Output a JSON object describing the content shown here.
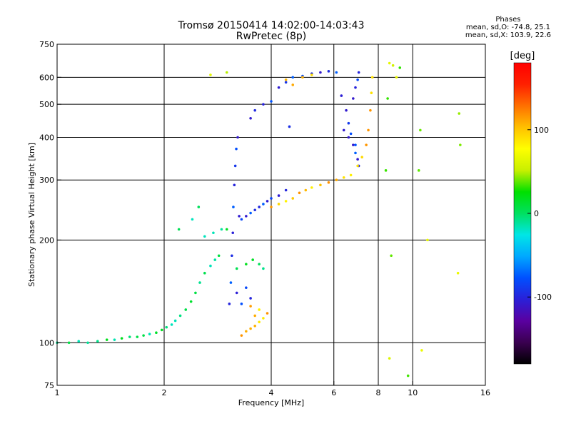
{
  "header": {
    "title_line1": "Tromsø 20150414 14:02:00-14:03:43",
    "title_line2": "RwPretec (8p)"
  },
  "phases_box": {
    "heading": "Phases",
    "line_o": "mean, sd,O: -74.8, 25.1",
    "line_x": "mean, sd,X: 103.9, 22.6"
  },
  "chart_data": {
    "type": "scatter",
    "title": "Tromsø 20150414 14:02:00-14:03:43",
    "subtitle": "RwPretec (8p)",
    "xlabel": "Frequency [MHz]",
    "ylabel": "Stationary phase Virtual Height [km]",
    "x_scale": "log",
    "y_scale": "log",
    "xlim": [
      1,
      16
    ],
    "ylim": [
      75,
      750
    ],
    "x_ticks": [
      1,
      2,
      4,
      6,
      8,
      10,
      16
    ],
    "y_ticks": [
      75,
      100,
      200,
      300,
      400,
      500,
      600,
      750
    ],
    "vertical_gridlines": [
      2,
      4,
      6,
      8,
      10
    ],
    "horizontal_gridlines": [
      100,
      200,
      300,
      400,
      500,
      600
    ],
    "grid": true,
    "colorbar": {
      "label": "[deg]",
      "range": [
        -180,
        180
      ],
      "ticks": [
        100,
        0,
        -100
      ],
      "colors": [
        "#000000",
        "#3a0050",
        "#5a00a0",
        "#2a20d8",
        "#0050ff",
        "#00a8ff",
        "#00e6e6",
        "#00e060",
        "#00e000",
        "#c8f000",
        "#ffff00",
        "#ffc000",
        "#ff7000",
        "#ff2000",
        "#ff0000"
      ]
    },
    "series": [
      {
        "points": [
          [
            1.0,
            100
          ],
          [
            1.08,
            100
          ],
          [
            1.15,
            101
          ],
          [
            1.22,
            100
          ],
          [
            1.3,
            101
          ],
          [
            1.38,
            102
          ],
          [
            1.45,
            102
          ],
          [
            1.52,
            103
          ],
          [
            1.6,
            104
          ],
          [
            1.68,
            104
          ],
          [
            1.75,
            105
          ],
          [
            1.82,
            106
          ],
          [
            1.9,
            107
          ],
          [
            1.97,
            109
          ],
          [
            2.03,
            111
          ],
          [
            2.1,
            113
          ],
          [
            2.15,
            116
          ],
          [
            2.22,
            120
          ],
          [
            2.3,
            125
          ],
          [
            2.38,
            132
          ],
          [
            2.45,
            140
          ],
          [
            2.52,
            150
          ],
          [
            2.6,
            160
          ],
          [
            2.7,
            168
          ],
          [
            2.78,
            175
          ],
          [
            2.85,
            180
          ],
          [
            2.2,
            215
          ],
          [
            2.4,
            230
          ],
          [
            2.5,
            250
          ],
          [
            2.6,
            205
          ],
          [
            2.75,
            210
          ],
          [
            2.9,
            215
          ],
          [
            3.0,
            215
          ],
          [
            3.2,
            165
          ],
          [
            3.4,
            170
          ],
          [
            3.55,
            175
          ],
          [
            3.7,
            170
          ],
          [
            3.8,
            165
          ]
        ],
        "phase": 0
      },
      {
        "points": [
          [
            3.05,
            130
          ],
          [
            3.08,
            150
          ],
          [
            3.1,
            180
          ],
          [
            3.12,
            210
          ],
          [
            3.13,
            250
          ],
          [
            3.15,
            290
          ],
          [
            3.17,
            330
          ],
          [
            3.19,
            370
          ],
          [
            3.22,
            400
          ],
          [
            3.25,
            235
          ],
          [
            3.3,
            230
          ],
          [
            3.4,
            235
          ],
          [
            3.5,
            240
          ],
          [
            3.6,
            245
          ],
          [
            3.7,
            250
          ],
          [
            3.8,
            255
          ],
          [
            3.9,
            260
          ],
          [
            4.0,
            265
          ],
          [
            4.2,
            270
          ],
          [
            4.4,
            280
          ],
          [
            4.5,
            430
          ],
          [
            4.0,
            510
          ],
          [
            3.8,
            500
          ],
          [
            3.6,
            480
          ],
          [
            3.5,
            455
          ],
          [
            4.2,
            560
          ],
          [
            4.4,
            580
          ],
          [
            4.6,
            600
          ],
          [
            4.9,
            605
          ],
          [
            5.2,
            615
          ],
          [
            5.5,
            620
          ],
          [
            5.8,
            625
          ],
          [
            6.1,
            620
          ],
          [
            6.3,
            530
          ],
          [
            6.5,
            480
          ],
          [
            6.6,
            440
          ],
          [
            6.7,
            410
          ],
          [
            6.8,
            380
          ],
          [
            6.9,
            360
          ],
          [
            7.0,
            345
          ],
          [
            7.05,
            330
          ],
          [
            6.8,
            520
          ],
          [
            6.9,
            560
          ],
          [
            7.0,
            590
          ],
          [
            7.05,
            620
          ],
          [
            6.9,
            380
          ],
          [
            6.6,
            400
          ],
          [
            6.4,
            420
          ],
          [
            3.2,
            140
          ],
          [
            3.3,
            130
          ],
          [
            3.4,
            145
          ],
          [
            3.5,
            135
          ]
        ],
        "phase": -90
      },
      {
        "points": [
          [
            3.3,
            105
          ],
          [
            3.4,
            108
          ],
          [
            3.5,
            110
          ],
          [
            3.6,
            112
          ],
          [
            3.7,
            115
          ],
          [
            3.8,
            118
          ],
          [
            3.9,
            122
          ],
          [
            3.6,
            120
          ],
          [
            3.7,
            125
          ],
          [
            3.5,
            128
          ],
          [
            4.0,
            250
          ],
          [
            4.2,
            255
          ],
          [
            4.4,
            260
          ],
          [
            4.6,
            265
          ],
          [
            4.8,
            275
          ],
          [
            5.0,
            280
          ],
          [
            5.2,
            285
          ],
          [
            5.5,
            290
          ],
          [
            5.8,
            295
          ],
          [
            6.1,
            300
          ],
          [
            6.4,
            305
          ],
          [
            6.7,
            310
          ],
          [
            7.0,
            330
          ],
          [
            7.2,
            350
          ],
          [
            7.4,
            380
          ],
          [
            7.5,
            420
          ],
          [
            7.6,
            480
          ],
          [
            7.65,
            540
          ],
          [
            7.7,
            600
          ],
          [
            4.4,
            590
          ],
          [
            4.6,
            570
          ],
          [
            4.9,
            600
          ],
          [
            5.2,
            610
          ]
        ],
        "phase": 100
      },
      {
        "points": [
          [
            8.6,
            660
          ],
          [
            8.8,
            650
          ],
          [
            9.0,
            600
          ],
          [
            9.2,
            640
          ],
          [
            8.5,
            520
          ],
          [
            8.7,
            180
          ],
          [
            8.4,
            320
          ],
          [
            8.6,
            90
          ],
          [
            9.7,
            80
          ],
          [
            10.6,
            95
          ],
          [
            10.5,
            420
          ],
          [
            10.4,
            320
          ],
          [
            11.0,
            200
          ],
          [
            13.5,
            470
          ],
          [
            13.6,
            380
          ],
          [
            13.4,
            160
          ],
          [
            2.7,
            610
          ],
          [
            3.0,
            620
          ]
        ],
        "phase": 50
      }
    ]
  }
}
